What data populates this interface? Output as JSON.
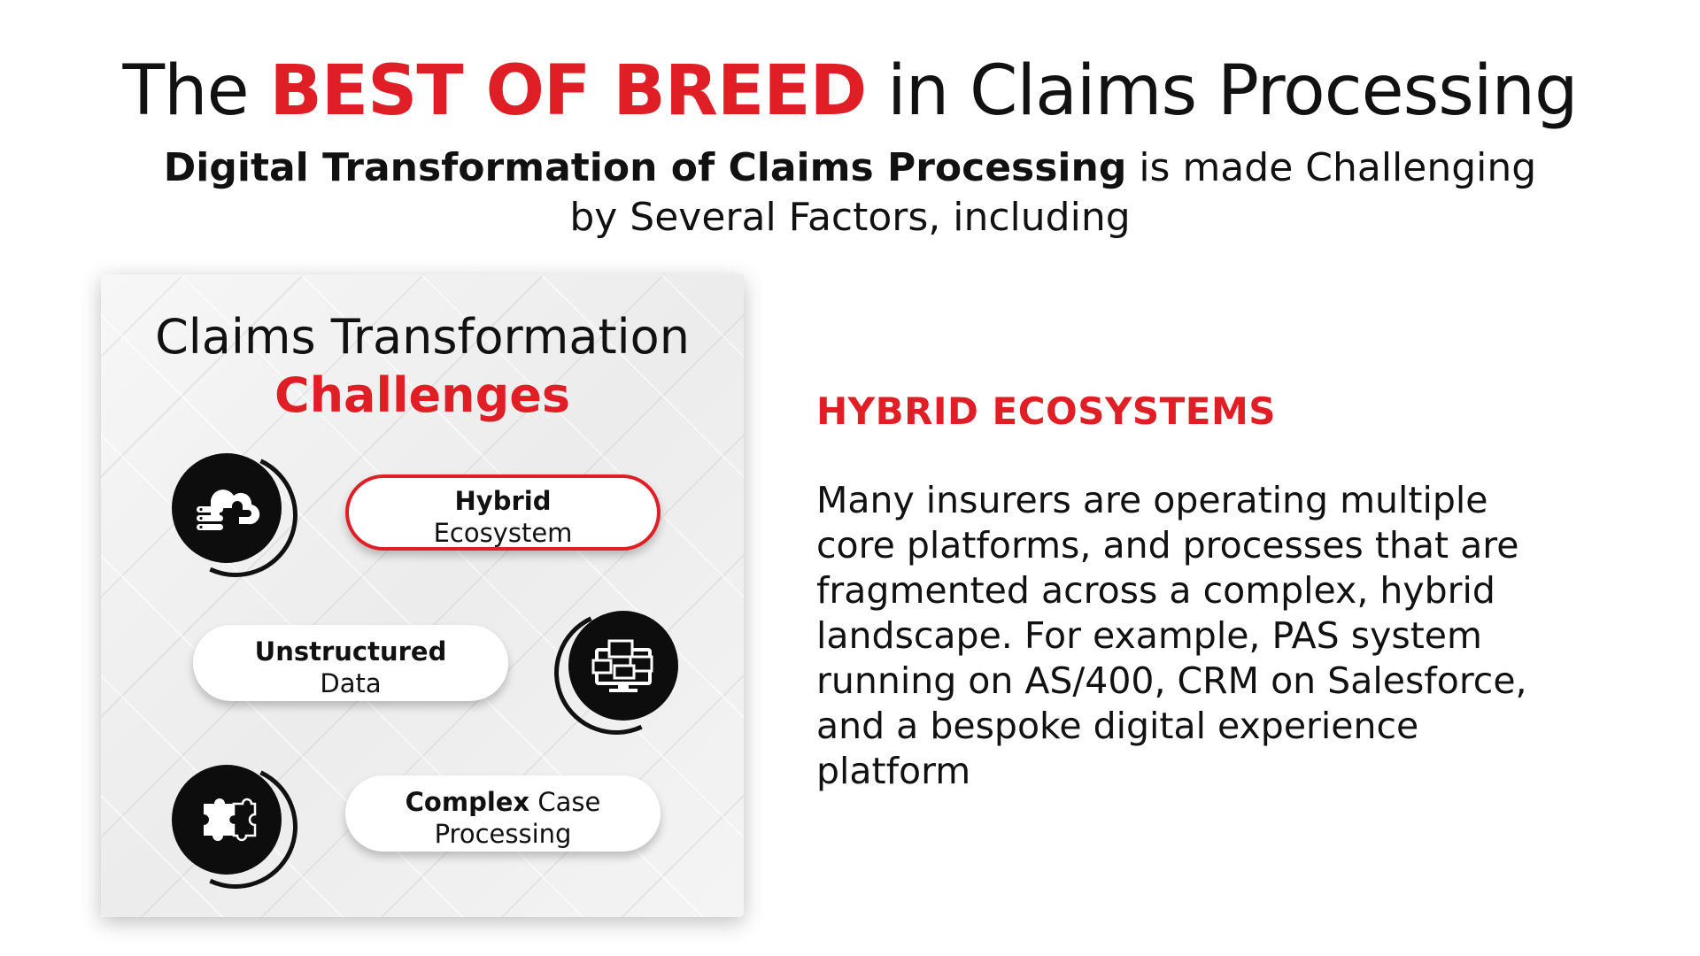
{
  "header": {
    "title_before": "The ",
    "title_accent": "BEST OF BREED",
    "title_after": " in Claims Processing",
    "subtitle_bold": "Digital Transformation of Claims Processing",
    "subtitle_rest": " is made Challenging by Several Factors, including"
  },
  "card": {
    "title": "Claims Transformation",
    "title_accent": "Challenges",
    "items": [
      {
        "bold": "Hybrid",
        "rest": "Ecosystem",
        "icon": "cloud-server-icon",
        "highlighted": true
      },
      {
        "bold": "Unstructured",
        "rest": "Data",
        "icon": "computer-windows-icon",
        "highlighted": false
      },
      {
        "bold": "Complex",
        "rest": " Case Processing",
        "icon": "puzzle-icon",
        "highlighted": false
      }
    ]
  },
  "detail": {
    "heading": "HYBRID ECOSYSTEMS",
    "body": "Many insurers are operating multiple core platforms, and processes that are fragmented across a complex, hybrid landscape. For example, PAS system running on AS/400, CRM on Salesforce, and a bespoke digital experience platform"
  },
  "colors": {
    "accent": "#e01e26",
    "text": "#111111",
    "icon_bg": "#0d0d0d"
  }
}
